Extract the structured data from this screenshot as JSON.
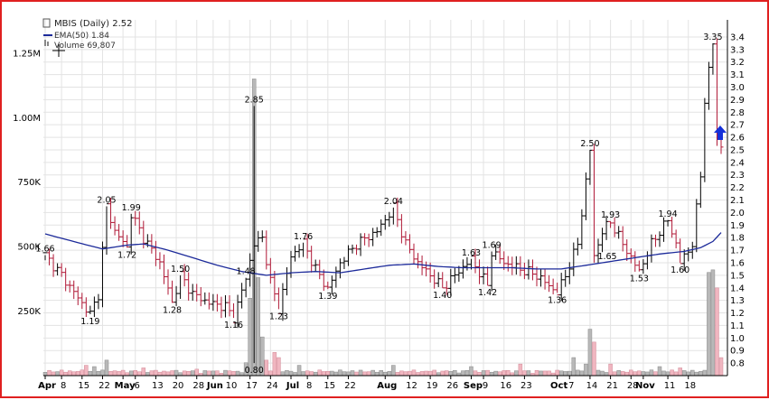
{
  "chart_data": {
    "type": "candlestick",
    "title": "MBIS (Daily) 2.52",
    "legend": [
      {
        "label": "EMA(50) 1.84",
        "color": "#1c2a9a"
      },
      {
        "label": "Volume 69,807",
        "color": "#888888"
      }
    ],
    "price_axis": {
      "min": 0.7,
      "max": 3.45,
      "ticks": [
        "0.8",
        "0.9",
        "1.0",
        "1.1",
        "1.2",
        "1.3",
        "1.4",
        "1.5",
        "1.6",
        "1.7",
        "1.8",
        "1.9",
        "2.0",
        "2.1",
        "2.2",
        "2.3",
        "2.4",
        "2.5",
        "2.6",
        "2.7",
        "2.8",
        "2.9",
        "3.0",
        "3.1",
        "3.2",
        "3.3",
        "3.4"
      ]
    },
    "volume_axis": {
      "ticks": [
        {
          "value": 250000,
          "label": "250K"
        },
        {
          "value": 500000,
          "label": "500K"
        },
        {
          "value": 750000,
          "label": "750K"
        },
        {
          "value": 1000000,
          "label": "1.00M"
        },
        {
          "value": 1250000,
          "label": "1.25M"
        }
      ]
    },
    "x_ticks": [
      {
        "i": 0,
        "label": "Apr",
        "bold": true
      },
      {
        "i": 4,
        "label": "8"
      },
      {
        "i": 9,
        "label": "15"
      },
      {
        "i": 14,
        "label": "22"
      },
      {
        "i": 19,
        "label": "May",
        "bold": true
      },
      {
        "i": 22,
        "label": "6"
      },
      {
        "i": 27,
        "label": "13"
      },
      {
        "i": 32,
        "label": "20"
      },
      {
        "i": 37,
        "label": "28"
      },
      {
        "i": 41,
        "label": "Jun",
        "bold": true
      },
      {
        "i": 45,
        "label": "10"
      },
      {
        "i": 50,
        "label": "17"
      },
      {
        "i": 55,
        "label": "24"
      },
      {
        "i": 60,
        "label": "Jul",
        "bold": true
      },
      {
        "i": 64,
        "label": "8"
      },
      {
        "i": 69,
        "label": "15"
      },
      {
        "i": 74,
        "label": "22"
      },
      {
        "i": 83,
        "label": "Aug",
        "bold": true
      },
      {
        "i": 89,
        "label": "12"
      },
      {
        "i": 94,
        "label": "19"
      },
      {
        "i": 99,
        "label": "26"
      },
      {
        "i": 104,
        "label": "Sep",
        "bold": true
      },
      {
        "i": 107,
        "label": "9"
      },
      {
        "i": 112,
        "label": "16"
      },
      {
        "i": 117,
        "label": "23"
      },
      {
        "i": 125,
        "label": "Oct",
        "bold": true
      },
      {
        "i": 128,
        "label": "7"
      },
      {
        "i": 133,
        "label": "14"
      },
      {
        "i": 138,
        "label": "21"
      },
      {
        "i": 143,
        "label": "28"
      },
      {
        "i": 146,
        "label": "Nov",
        "bold": true
      },
      {
        "i": 152,
        "label": "11"
      },
      {
        "i": 157,
        "label": "18"
      }
    ],
    "annotations": [
      {
        "i": 0,
        "price": 1.66,
        "label": "1.66",
        "pos": "above"
      },
      {
        "i": 11,
        "price": 1.19,
        "label": "1.19",
        "pos": "below"
      },
      {
        "i": 15,
        "price": 2.05,
        "label": "2.05",
        "pos": "above"
      },
      {
        "i": 20,
        "price": 1.72,
        "label": "1.72",
        "pos": "below"
      },
      {
        "i": 21,
        "price": 1.99,
        "label": "1.99",
        "pos": "above"
      },
      {
        "i": 31,
        "price": 1.28,
        "label": "1.28",
        "pos": "below"
      },
      {
        "i": 33,
        "price": 1.5,
        "label": "1.50",
        "pos": "above"
      },
      {
        "i": 46,
        "price": 1.16,
        "label": "1.16",
        "pos": "below"
      },
      {
        "i": 49,
        "price": 1.48,
        "label": "1.48",
        "pos": "above"
      },
      {
        "i": 51,
        "price": 2.85,
        "label": "2.85",
        "pos": "above"
      },
      {
        "i": 51,
        "price": 0.8,
        "label": "0.80",
        "pos": "below"
      },
      {
        "i": 57,
        "price": 1.23,
        "label": "1.23",
        "pos": "below"
      },
      {
        "i": 63,
        "price": 1.76,
        "label": "1.76",
        "pos": "above"
      },
      {
        "i": 69,
        "price": 1.39,
        "label": "1.39",
        "pos": "below"
      },
      {
        "i": 85,
        "price": 2.04,
        "label": "2.04",
        "pos": "above"
      },
      {
        "i": 97,
        "price": 1.4,
        "label": "1.40",
        "pos": "below"
      },
      {
        "i": 104,
        "price": 1.63,
        "label": "1.63",
        "pos": "above"
      },
      {
        "i": 108,
        "price": 1.42,
        "label": "1.42",
        "pos": "below"
      },
      {
        "i": 109,
        "price": 1.69,
        "label": "1.69",
        "pos": "above"
      },
      {
        "i": 125,
        "price": 1.36,
        "label": "1.36",
        "pos": "below"
      },
      {
        "i": 133,
        "price": 2.5,
        "label": "2.50",
        "pos": "above"
      },
      {
        "i": 134,
        "price": 1.65,
        "label": "1.65",
        "pos": "right"
      },
      {
        "i": 138,
        "price": 1.93,
        "label": "1.93",
        "pos": "above"
      },
      {
        "i": 145,
        "price": 1.53,
        "label": "1.53",
        "pos": "below"
      },
      {
        "i": 152,
        "price": 1.94,
        "label": "1.94",
        "pos": "above"
      },
      {
        "i": 155,
        "price": 1.6,
        "label": "1.60",
        "pos": "below"
      },
      {
        "i": 163,
        "price": 3.35,
        "label": "3.35",
        "pos": "above"
      }
    ],
    "keypoints": [
      [
        0,
        1.66
      ],
      [
        4,
        1.5
      ],
      [
        8,
        1.32
      ],
      [
        11,
        1.19
      ],
      [
        13,
        1.35
      ],
      [
        15,
        2.05
      ],
      [
        17,
        1.85
      ],
      [
        20,
        1.72
      ],
      [
        21,
        1.99
      ],
      [
        24,
        1.8
      ],
      [
        28,
        1.6
      ],
      [
        31,
        1.28
      ],
      [
        33,
        1.5
      ],
      [
        36,
        1.35
      ],
      [
        40,
        1.28
      ],
      [
        44,
        1.25
      ],
      [
        46,
        1.16
      ],
      [
        49,
        1.48
      ],
      [
        51,
        1.75
      ],
      [
        53,
        1.8
      ],
      [
        55,
        1.45
      ],
      [
        57,
        1.23
      ],
      [
        60,
        1.65
      ],
      [
        63,
        1.76
      ],
      [
        66,
        1.55
      ],
      [
        69,
        1.39
      ],
      [
        72,
        1.6
      ],
      [
        76,
        1.75
      ],
      [
        81,
        1.85
      ],
      [
        85,
        2.04
      ],
      [
        88,
        1.75
      ],
      [
        91,
        1.6
      ],
      [
        94,
        1.5
      ],
      [
        97,
        1.4
      ],
      [
        100,
        1.5
      ],
      [
        104,
        1.63
      ],
      [
        106,
        1.52
      ],
      [
        108,
        1.42
      ],
      [
        109,
        1.69
      ],
      [
        112,
        1.6
      ],
      [
        116,
        1.55
      ],
      [
        120,
        1.5
      ],
      [
        125,
        1.36
      ],
      [
        127,
        1.5
      ],
      [
        130,
        1.75
      ],
      [
        133,
        2.5
      ],
      [
        134,
        1.65
      ],
      [
        136,
        1.85
      ],
      [
        138,
        1.93
      ],
      [
        141,
        1.75
      ],
      [
        145,
        1.53
      ],
      [
        148,
        1.75
      ],
      [
        150,
        1.85
      ],
      [
        152,
        1.94
      ],
      [
        154,
        1.75
      ],
      [
        155,
        1.6
      ],
      [
        158,
        1.75
      ],
      [
        160,
        2.3
      ],
      [
        161,
        2.9
      ],
      [
        163,
        3.35
      ],
      [
        164,
        2.6
      ],
      [
        165,
        2.52
      ]
    ],
    "ema50_keypoints": [
      [
        0,
        1.83
      ],
      [
        8,
        1.76
      ],
      [
        14,
        1.71
      ],
      [
        20,
        1.74
      ],
      [
        24,
        1.75
      ],
      [
        30,
        1.7
      ],
      [
        36,
        1.64
      ],
      [
        42,
        1.58
      ],
      [
        48,
        1.53
      ],
      [
        54,
        1.5
      ],
      [
        60,
        1.52
      ],
      [
        66,
        1.53
      ],
      [
        72,
        1.52
      ],
      [
        78,
        1.55
      ],
      [
        84,
        1.58
      ],
      [
        90,
        1.59
      ],
      [
        96,
        1.57
      ],
      [
        102,
        1.56
      ],
      [
        108,
        1.56
      ],
      [
        114,
        1.56
      ],
      [
        120,
        1.55
      ],
      [
        126,
        1.55
      ],
      [
        132,
        1.58
      ],
      [
        138,
        1.61
      ],
      [
        144,
        1.64
      ],
      [
        150,
        1.67
      ],
      [
        156,
        1.69
      ],
      [
        160,
        1.72
      ],
      [
        163,
        1.77
      ],
      [
        165,
        1.84
      ]
    ],
    "volume_spikes": [
      [
        10,
        40000
      ],
      [
        12,
        35000
      ],
      [
        15,
        60000
      ],
      [
        24,
        30000
      ],
      [
        37,
        25000
      ],
      [
        49,
        50000
      ],
      [
        50,
        300000
      ],
      [
        51,
        1150000
      ],
      [
        52,
        380000
      ],
      [
        53,
        150000
      ],
      [
        54,
        60000
      ],
      [
        56,
        90000
      ],
      [
        57,
        70000
      ],
      [
        62,
        40000
      ],
      [
        85,
        40000
      ],
      [
        104,
        35000
      ],
      [
        116,
        45000
      ],
      [
        129,
        70000
      ],
      [
        132,
        45000
      ],
      [
        133,
        180000
      ],
      [
        134,
        130000
      ],
      [
        138,
        45000
      ],
      [
        150,
        35000
      ],
      [
        155,
        30000
      ],
      [
        162,
        400000
      ],
      [
        163,
        410000
      ],
      [
        164,
        340000
      ],
      [
        165,
        69807
      ]
    ]
  }
}
